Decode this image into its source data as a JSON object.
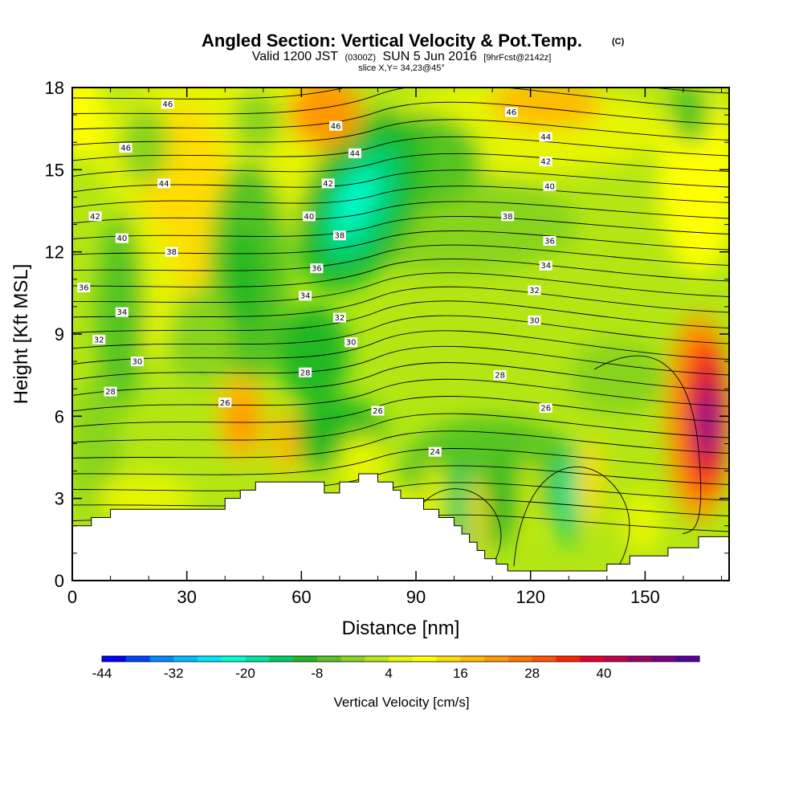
{
  "chart_data": {
    "type": "heatmap",
    "title": "Angled Section: Vertical Velocity & Pot.Temp.",
    "title_unit": "(C)",
    "subtitle_parts": [
      "Valid 1200 JST",
      "(0300Z)",
      "SUN 5 Jun 2016",
      "[9hrFcst@2142z]"
    ],
    "slice_label": "slice X,Y= 34,23@45°",
    "xlabel": "Distance [nm]",
    "ylabel": "Height [Kft MSL]",
    "xlim": [
      0,
      172
    ],
    "ylim": [
      0,
      18
    ],
    "x_ticks": [
      0,
      30,
      60,
      90,
      120,
      150
    ],
    "y_ticks": [
      0,
      3,
      6,
      9,
      12,
      15,
      18
    ],
    "colorbar": {
      "label": "Vertical Velocity [cm/s]",
      "tick_values": [
        -44,
        -32,
        -20,
        -8,
        4,
        16,
        28,
        40
      ],
      "colors": [
        "#0000ff",
        "#0044ff",
        "#0088ff",
        "#00bbff",
        "#00e6ff",
        "#00ffd5",
        "#00e6a0",
        "#00cc66",
        "#22b822",
        "#55c422",
        "#88d41e",
        "#b4e614",
        "#e6f500",
        "#ffff00",
        "#ffdd00",
        "#ffbb00",
        "#ff9900",
        "#ff7700",
        "#ff5500",
        "#ff2200",
        "#e6002e",
        "#c4004c",
        "#a0006a",
        "#7a0088",
        "#5a00a0"
      ]
    },
    "terrain_profile": [
      [
        0,
        2.0
      ],
      [
        5,
        2.0
      ],
      [
        5,
        2.3
      ],
      [
        10,
        2.3
      ],
      [
        10,
        2.6
      ],
      [
        40,
        2.6
      ],
      [
        40,
        3.0
      ],
      [
        44,
        3.0
      ],
      [
        44,
        3.3
      ],
      [
        48,
        3.3
      ],
      [
        48,
        3.6
      ],
      [
        66,
        3.6
      ],
      [
        66,
        3.2
      ],
      [
        70,
        3.2
      ],
      [
        70,
        3.6
      ],
      [
        75,
        3.6
      ],
      [
        75,
        3.9
      ],
      [
        80,
        3.9
      ],
      [
        80,
        3.6
      ],
      [
        84,
        3.6
      ],
      [
        84,
        3.3
      ],
      [
        86,
        3.3
      ],
      [
        86,
        3.0
      ],
      [
        92,
        3.0
      ],
      [
        92,
        2.6
      ],
      [
        96,
        2.6
      ],
      [
        96,
        2.3
      ],
      [
        100,
        2.3
      ],
      [
        100,
        2.0
      ],
      [
        102,
        2.0
      ],
      [
        102,
        1.7
      ],
      [
        104,
        1.7
      ],
      [
        104,
        1.4
      ],
      [
        106,
        1.4
      ],
      [
        106,
        1.1
      ],
      [
        108,
        1.1
      ],
      [
        108,
        0.8
      ],
      [
        111,
        0.8
      ],
      [
        111,
        0.6
      ],
      [
        114,
        0.6
      ],
      [
        114,
        0.35
      ],
      [
        140,
        0.35
      ],
      [
        140,
        0.6
      ],
      [
        146,
        0.6
      ],
      [
        146,
        0.9
      ],
      [
        156,
        0.9
      ],
      [
        156,
        1.2
      ],
      [
        164,
        1.2
      ],
      [
        164,
        1.6
      ],
      [
        172,
        1.6
      ]
    ],
    "contour_labels": [
      {
        "text": "46",
        "x": 25,
        "y": 17.4
      },
      {
        "text": "46",
        "x": 14,
        "y": 15.8
      },
      {
        "text": "44",
        "x": 24,
        "y": 14.5
      },
      {
        "text": "42",
        "x": 6,
        "y": 13.3
      },
      {
        "text": "40",
        "x": 13,
        "y": 12.5
      },
      {
        "text": "38",
        "x": 26,
        "y": 12.0
      },
      {
        "text": "36",
        "x": 3,
        "y": 10.7
      },
      {
        "text": "34",
        "x": 13,
        "y": 9.8
      },
      {
        "text": "32",
        "x": 7,
        "y": 8.8
      },
      {
        "text": "30",
        "x": 17,
        "y": 8.0
      },
      {
        "text": "28",
        "x": 10,
        "y": 6.9
      },
      {
        "text": "26",
        "x": 40,
        "y": 6.5
      },
      {
        "text": "46",
        "x": 69,
        "y": 16.6
      },
      {
        "text": "44",
        "x": 74,
        "y": 15.6
      },
      {
        "text": "42",
        "x": 67,
        "y": 14.5
      },
      {
        "text": "40",
        "x": 62,
        "y": 13.3
      },
      {
        "text": "38",
        "x": 70,
        "y": 12.6
      },
      {
        "text": "36",
        "x": 64,
        "y": 11.4
      },
      {
        "text": "34",
        "x": 61,
        "y": 10.4
      },
      {
        "text": "32",
        "x": 70,
        "y": 9.6
      },
      {
        "text": "30",
        "x": 73,
        "y": 8.7
      },
      {
        "text": "28",
        "x": 61,
        "y": 7.6
      },
      {
        "text": "26",
        "x": 80,
        "y": 6.2
      },
      {
        "text": "24",
        "x": 95,
        "y": 4.7
      },
      {
        "text": "46",
        "x": 115,
        "y": 17.1
      },
      {
        "text": "44",
        "x": 124,
        "y": 16.2
      },
      {
        "text": "42",
        "x": 124,
        "y": 15.3
      },
      {
        "text": "40",
        "x": 125,
        "y": 14.4
      },
      {
        "text": "38",
        "x": 114,
        "y": 13.3
      },
      {
        "text": "36",
        "x": 125,
        "y": 12.4
      },
      {
        "text": "34",
        "x": 124,
        "y": 11.5
      },
      {
        "text": "32",
        "x": 121,
        "y": 10.6
      },
      {
        "text": "30",
        "x": 121,
        "y": 9.5
      },
      {
        "text": "28",
        "x": 112,
        "y": 7.5
      },
      {
        "text": "26",
        "x": 124,
        "y": 6.3
      }
    ]
  }
}
